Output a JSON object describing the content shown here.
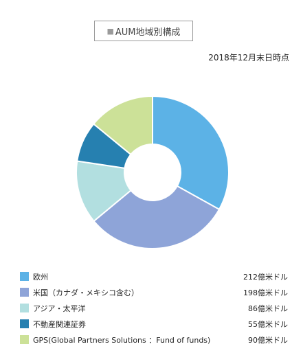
{
  "header": {
    "title": "AUM地域別構成",
    "title_marker": "■",
    "date_note": "2018年12月末日時点"
  },
  "chart_data": {
    "type": "pie",
    "title": "AUM地域別構成",
    "subtitle": "2018年12月末日時点",
    "donut": true,
    "legend_position": "bottom",
    "unit": "億米ドル",
    "categories": [
      "欧州",
      "米国（カナダ・メキシコ含む）",
      "アジア・太平洋",
      "不動産関連証券",
      "GPS(Global Partners Solutions ：Fund of funds)"
    ],
    "values": [
      212,
      198,
      86,
      55,
      90
    ],
    "value_labels": [
      "212億米ドル",
      "198億米ドル",
      "86億米ドル",
      "55億米ドル",
      "90億米ドル"
    ],
    "colors": [
      "#5cb2e6",
      "#8ea4d8",
      "#b2dfe0",
      "#2680b0",
      "#cce198"
    ]
  }
}
